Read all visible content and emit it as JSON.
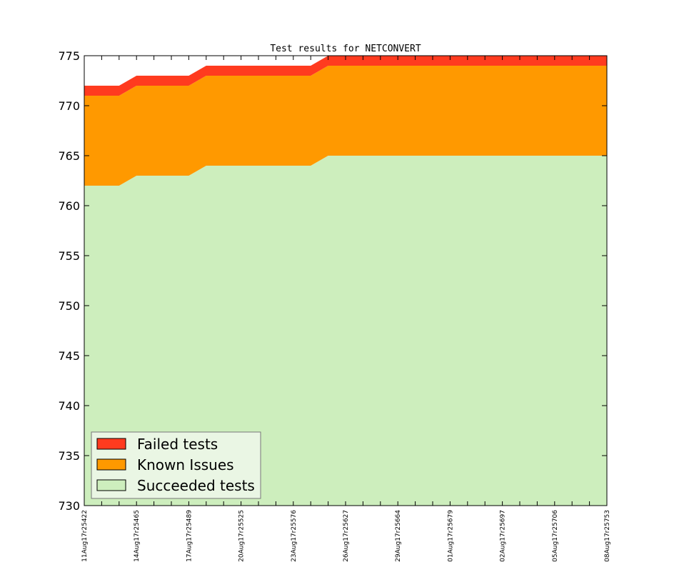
{
  "chart_data": {
    "type": "area",
    "title": "Test results for NETCONVERT",
    "xlabel": "",
    "ylabel": "",
    "ylim": [
      730,
      775
    ],
    "yticks": [
      730,
      735,
      740,
      745,
      750,
      755,
      760,
      765,
      770,
      775
    ],
    "x_tick_labels": [
      "11Aug17r25422",
      "14Aug17r25465",
      "17Aug17r25489",
      "20Aug17r25525",
      "23Aug17r25576",
      "26Aug17r25627",
      "29Aug17r25664",
      "01Aug17r25679",
      "02Aug17r25697",
      "05Aug17r25706",
      "08Aug17r25753"
    ],
    "x_minor_per_major": 2,
    "legend_position": "lower-left",
    "grid": false,
    "series": [
      {
        "name": "Failed tests",
        "color": "#ff3b1f",
        "values": [
          1,
          1,
          1,
          1,
          1,
          1,
          1,
          1,
          1,
          1,
          1,
          1,
          1,
          1,
          1,
          1,
          1,
          1,
          1,
          1,
          1,
          1,
          1,
          1,
          1,
          1,
          1,
          1,
          1,
          1,
          1
        ]
      },
      {
        "name": "Known Issues",
        "color": "#ff9900",
        "values": [
          9,
          9,
          9,
          9,
          9,
          9,
          9,
          9,
          9,
          9,
          9,
          9,
          9,
          9,
          9,
          9,
          9,
          9,
          9,
          9,
          9,
          9,
          9,
          9,
          9,
          9,
          9,
          9,
          9,
          9,
          9
        ]
      },
      {
        "name": "Succeeded tests",
        "color": "#cdeebd",
        "values": [
          762,
          762,
          762,
          763,
          763,
          763,
          763,
          764,
          764,
          764,
          764,
          764,
          764,
          764,
          765,
          765,
          765,
          765,
          765,
          765,
          765,
          765,
          765,
          765,
          765,
          765,
          765,
          765,
          765,
          765,
          765
        ]
      }
    ]
  }
}
